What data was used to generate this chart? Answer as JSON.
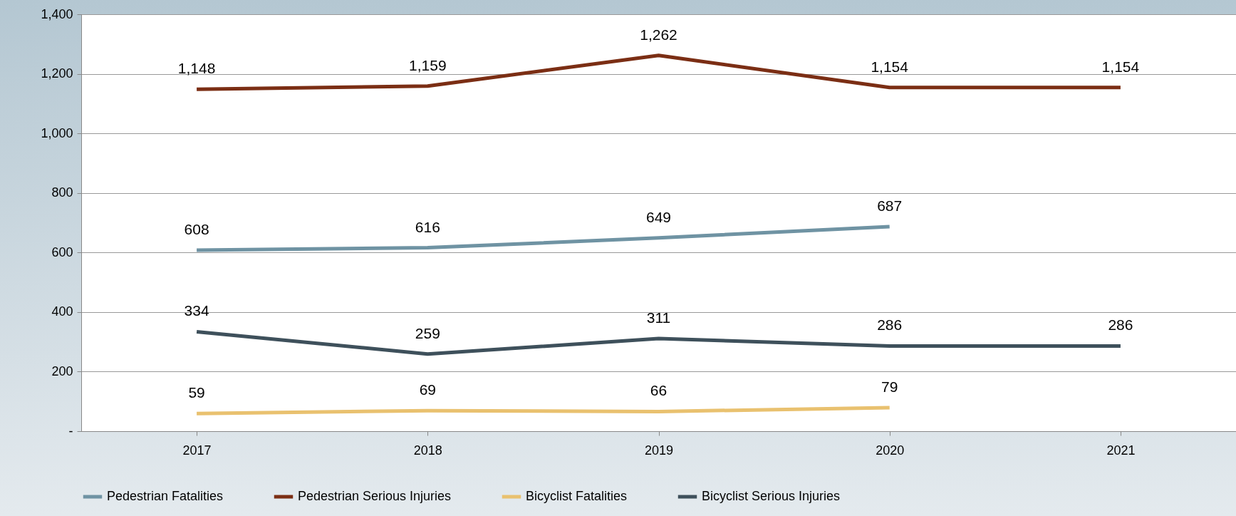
{
  "chart_data": {
    "type": "line",
    "categories": [
      "2017",
      "2018",
      "2019",
      "2020",
      "2021"
    ],
    "series": [
      {
        "name": "Pedestrian Fatalities",
        "color": "#6f93a3",
        "values": [
          608,
          616,
          649,
          687,
          null
        ],
        "value_labels": [
          "608",
          "616",
          "649",
          "687",
          null
        ]
      },
      {
        "name": "Pedestrian Serious Injuries",
        "color": "#7b2e14",
        "values": [
          1148,
          1159,
          1262,
          1154,
          1154
        ],
        "value_labels": [
          "1,148",
          "1,159",
          "1,262",
          "1,154",
          "1,154"
        ]
      },
      {
        "name": "Bicyclist Fatalities",
        "color": "#e9c16f",
        "values": [
          59,
          69,
          66,
          79,
          null
        ],
        "value_labels": [
          "59",
          "69",
          "66",
          "79",
          null
        ]
      },
      {
        "name": "Bicyclist Serious Injuries",
        "color": "#3e505b",
        "values": [
          334,
          259,
          311,
          286,
          286
        ],
        "value_labels": [
          "334",
          "259",
          "311",
          "286",
          "286"
        ]
      }
    ],
    "ylim": [
      0,
      1400
    ],
    "yticks": [
      {
        "value": 0,
        "label": "-"
      },
      200,
      400,
      600,
      800,
      {
        "value": 1000,
        "label": "1,000"
      },
      {
        "value": 1200,
        "label": "1,200"
      },
      {
        "value": 1400,
        "label": "1,400"
      }
    ],
    "grid": "y",
    "legend": "bottom",
    "marker": "none",
    "line_style": "solid"
  }
}
